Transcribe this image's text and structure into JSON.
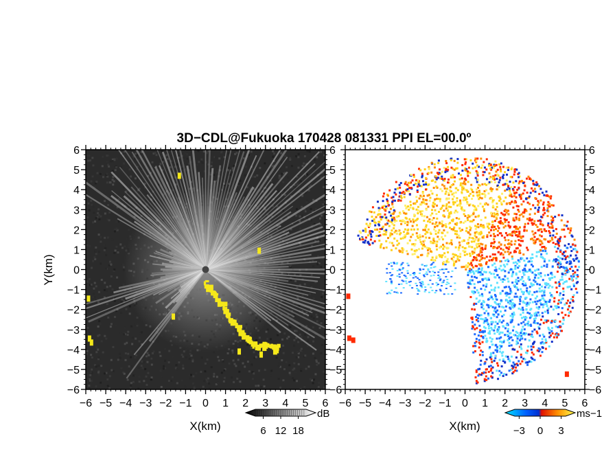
{
  "figure": {
    "title": "3D−CDL@Fukuoka 170428 081331 PPI EL=00.0º"
  },
  "chart_data": [
    {
      "type": "heatmap",
      "panel": "left",
      "variable": "reflectivity / SNR",
      "xlabel": "X(km)",
      "ylabel": "Y(km)",
      "xlim": [
        -6,
        6
      ],
      "ylim": [
        -6,
        6
      ],
      "xticks": [
        "−6",
        "−5",
        "−4",
        "−3",
        "−2",
        "−1",
        "0",
        "1",
        "2",
        "3",
        "4",
        "5",
        "6"
      ],
      "yticks": [
        "6",
        "5",
        "4",
        "3",
        "2",
        "1",
        "0",
        "−1",
        "−2",
        "−3",
        "−4",
        "−5",
        "−6"
      ],
      "colorbar": {
        "unit": "dB",
        "ticks": [
          "6",
          "12",
          "18"
        ],
        "range": [
          0,
          24
        ],
        "colors": [
          "#000000",
          "#ffffff"
        ]
      },
      "highlight_color": "#f5e81a",
      "background_color": "#2b2b2b"
    },
    {
      "type": "heatmap",
      "panel": "right",
      "variable": "Doppler velocity",
      "xlabel": "X(km)",
      "xlim": [
        -6,
        6
      ],
      "ylim": [
        -6,
        6
      ],
      "xticks": [
        "−6",
        "−5",
        "−4",
        "−3",
        "−2",
        "−1",
        "0",
        "1",
        "2",
        "3",
        "4",
        "5",
        "6"
      ],
      "yticks": [
        "6",
        "5",
        "4",
        "3",
        "2",
        "1",
        "0",
        "−1",
        "−2",
        "−3",
        "−4",
        "−5",
        "−6"
      ],
      "colorbar": {
        "unit": "ms−1",
        "ticks": [
          "−3",
          "0",
          "3"
        ],
        "range": [
          -5,
          5
        ],
        "colors": [
          "#00e6ff",
          "#0050ff",
          "#ff2000",
          "#ffd000",
          "#ffff40"
        ]
      }
    }
  ]
}
